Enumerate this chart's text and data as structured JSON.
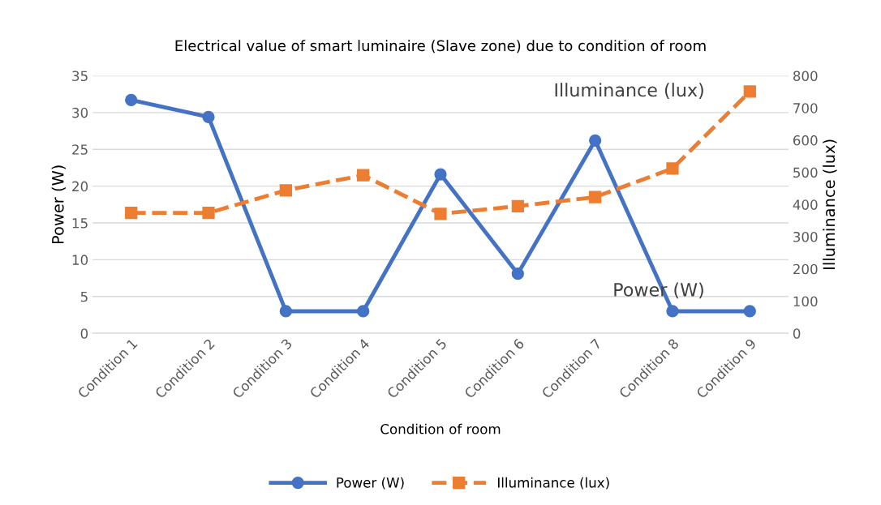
{
  "chart_data": {
    "type": "line",
    "title": "Electrical value of smart luminaire (Slave zone) due to condition of room",
    "xlabel": "Condition of room",
    "ylabel": "Power (W)",
    "y2label": "Illuminance (lux)",
    "categories": [
      "Condition 1",
      "Condition 2",
      "Condition 3",
      "Condition 4",
      "Condition 5",
      "Condition 6",
      "Condition 7",
      "Condition 8",
      "Condition 9"
    ],
    "series": [
      {
        "name": "Power (W)",
        "color": "#4472c4",
        "values": [
          31.7,
          29.4,
          3,
          3,
          21.6,
          8.1,
          26.2,
          3,
          3
        ],
        "marker": "circle",
        "line_style": "solid"
      },
      {
        "name": "Illuminance (lux)",
        "color": "#ed7d31",
        "values": [
          374,
          374,
          444,
          491,
          371,
          395,
          423,
          512,
          751
        ],
        "axis": "y2",
        "marker": "square",
        "line_style": "dashed"
      }
    ],
    "annotations": [
      "Illuminance (lux)",
      "Power (W)"
    ],
    "ylim": [
      0,
      35
    ],
    "yticks": [
      0,
      5,
      10,
      15,
      20,
      25,
      30,
      35
    ],
    "y2lim": [
      0,
      800
    ],
    "y2ticks": [
      0,
      100,
      200,
      300,
      400,
      500,
      600,
      700,
      800
    ],
    "grid": "y",
    "legend": "bottom"
  }
}
